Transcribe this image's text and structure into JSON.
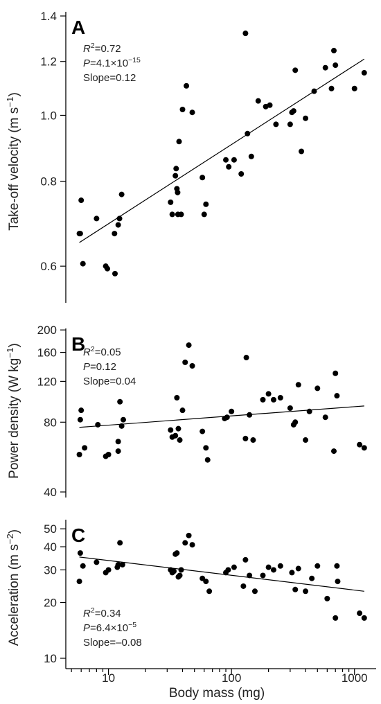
{
  "figure": {
    "xlabel": "Body mass (mg)"
  },
  "chart_data": [
    {
      "type": "scatter",
      "panel": "A",
      "ylabel": "Take-off velocity (m s⁻¹)",
      "xscale": "log",
      "yscale": "log",
      "xlim": [
        4.5,
        1500
      ],
      "ylim": [
        0.53,
        1.42
      ],
      "xticks": [
        "10",
        "100",
        "1000"
      ],
      "xtick_values": [
        10,
        100,
        1000
      ],
      "yticks": [
        "0.6",
        "0.8",
        "1.0",
        "1.2",
        "1.4"
      ],
      "ytick_values": [
        0.6,
        0.8,
        1.0,
        1.2,
        1.4
      ],
      "stats": [
        "R²=0.72",
        "P=4.1×10⁻¹⁵",
        "Slope=0.12"
      ],
      "fit": [
        [
          5.8,
          0.65
        ],
        [
          1200,
          1.21
        ]
      ],
      "points": [
        [
          5.8,
          0.67
        ],
        [
          5.9,
          0.67
        ],
        [
          6,
          0.75
        ],
        [
          6.2,
          0.605
        ],
        [
          8,
          0.705
        ],
        [
          9.5,
          0.6
        ],
        [
          9.8,
          0.595
        ],
        [
          11.2,
          0.67
        ],
        [
          11.3,
          0.585
        ],
        [
          12,
          0.69
        ],
        [
          12.3,
          0.705
        ],
        [
          12.8,
          0.765
        ],
        [
          32,
          0.745
        ],
        [
          33,
          0.715
        ],
        [
          35,
          0.815
        ],
        [
          35.5,
          0.835
        ],
        [
          36,
          0.78
        ],
        [
          36.5,
          0.77
        ],
        [
          36.7,
          0.715
        ],
        [
          37.5,
          0.915
        ],
        [
          39,
          0.715
        ],
        [
          40,
          1.02
        ],
        [
          43,
          1.105
        ],
        [
          48,
          1.01
        ],
        [
          58,
          0.81
        ],
        [
          60,
          0.715
        ],
        [
          62,
          0.74
        ],
        [
          90,
          0.86
        ],
        [
          95,
          0.84
        ],
        [
          105,
          0.86
        ],
        [
          120,
          0.82
        ],
        [
          130,
          1.32
        ],
        [
          135,
          0.94
        ],
        [
          145,
          0.87
        ],
        [
          165,
          1.05
        ],
        [
          190,
          1.03
        ],
        [
          205,
          1.035
        ],
        [
          230,
          0.97
        ],
        [
          300,
          0.97
        ],
        [
          310,
          1.01
        ],
        [
          320,
          1.015
        ],
        [
          330,
          1.165
        ],
        [
          370,
          0.885
        ],
        [
          400,
          0.99
        ],
        [
          470,
          1.085
        ],
        [
          580,
          1.175
        ],
        [
          650,
          1.095
        ],
        [
          680,
          1.245
        ],
        [
          700,
          1.185
        ],
        [
          1000,
          1.095
        ],
        [
          1200,
          1.155
        ]
      ]
    },
    {
      "type": "scatter",
      "panel": "B",
      "ylabel": "Power density (W kg⁻¹)",
      "xscale": "log",
      "yscale": "log",
      "xlim": [
        4.5,
        1500
      ],
      "ylim": [
        40,
        203
      ],
      "yticks": [
        "40",
        "80",
        "120",
        "160",
        "200"
      ],
      "ytick_values": [
        40,
        80,
        120,
        160,
        200
      ],
      "stats": [
        "R²=0.05",
        "P=0.12",
        "Slope=0.04"
      ],
      "fit": [
        [
          5.8,
          76
        ],
        [
          1200,
          94
        ]
      ],
      "points": [
        [
          5.8,
          58
        ],
        [
          5.9,
          82
        ],
        [
          6,
          90
        ],
        [
          6.4,
          62
        ],
        [
          8.2,
          78
        ],
        [
          9.5,
          57
        ],
        [
          10,
          58
        ],
        [
          12,
          60
        ],
        [
          12,
          66
        ],
        [
          12.4,
          98
        ],
        [
          12.8,
          77
        ],
        [
          13.2,
          82
        ],
        [
          32,
          74
        ],
        [
          33,
          69
        ],
        [
          35,
          70
        ],
        [
          36,
          102
        ],
        [
          37,
          75
        ],
        [
          38,
          67
        ],
        [
          40,
          90
        ],
        [
          42,
          145
        ],
        [
          45,
          172
        ],
        [
          48,
          140
        ],
        [
          58,
          73
        ],
        [
          62,
          62
        ],
        [
          64,
          55
        ],
        [
          88,
          83
        ],
        [
          92,
          84
        ],
        [
          100,
          89
        ],
        [
          130,
          68
        ],
        [
          132,
          152
        ],
        [
          140,
          86
        ],
        [
          150,
          67
        ],
        [
          180,
          100
        ],
        [
          200,
          106
        ],
        [
          220,
          100
        ],
        [
          250,
          102
        ],
        [
          300,
          92
        ],
        [
          320,
          78
        ],
        [
          330,
          80
        ],
        [
          350,
          116
        ],
        [
          400,
          67
        ],
        [
          430,
          89
        ],
        [
          500,
          112
        ],
        [
          580,
          84
        ],
        [
          680,
          60
        ],
        [
          700,
          130
        ],
        [
          720,
          104
        ],
        [
          1100,
          64
        ],
        [
          1200,
          62
        ]
      ]
    },
    {
      "type": "scatter",
      "panel": "C",
      "ylabel": "Acceleration (m s⁻²)",
      "xscale": "log",
      "yscale": "log",
      "xlim": [
        4.5,
        1500
      ],
      "ylim": [
        10,
        56
      ],
      "yticks": [
        "10",
        "20",
        "30",
        "40",
        "50"
      ],
      "ytick_values": [
        10,
        20,
        30,
        40,
        50
      ],
      "stats": [
        "R²=0.34",
        "P=6.4×10⁻⁵",
        "Slope=–0.08"
      ],
      "fit": [
        [
          5.8,
          35.2
        ],
        [
          1200,
          23
        ]
      ],
      "points": [
        [
          5.8,
          26
        ],
        [
          5.9,
          37
        ],
        [
          6.2,
          31.5
        ],
        [
          8,
          33
        ],
        [
          9.5,
          29
        ],
        [
          10,
          30
        ],
        [
          11.8,
          31
        ],
        [
          12,
          32
        ],
        [
          12.4,
          42
        ],
        [
          13,
          32
        ],
        [
          32,
          30
        ],
        [
          33,
          29
        ],
        [
          34,
          29.5
        ],
        [
          35,
          36.5
        ],
        [
          36,
          37
        ],
        [
          37,
          27.5
        ],
        [
          38,
          28
        ],
        [
          39,
          30
        ],
        [
          42,
          42
        ],
        [
          45,
          46
        ],
        [
          48,
          41
        ],
        [
          58,
          27
        ],
        [
          62,
          26
        ],
        [
          66,
          23
        ],
        [
          90,
          29
        ],
        [
          94,
          30
        ],
        [
          105,
          31
        ],
        [
          125,
          24.5
        ],
        [
          130,
          34
        ],
        [
          140,
          28
        ],
        [
          155,
          23
        ],
        [
          180,
          28
        ],
        [
          200,
          31
        ],
        [
          220,
          30
        ],
        [
          250,
          31.5
        ],
        [
          310,
          29
        ],
        [
          330,
          23.5
        ],
        [
          350,
          30.5
        ],
        [
          400,
          23
        ],
        [
          450,
          27
        ],
        [
          500,
          31.5
        ],
        [
          600,
          21
        ],
        [
          700,
          16.5
        ],
        [
          720,
          31.5
        ],
        [
          730,
          26
        ],
        [
          1100,
          17.5
        ],
        [
          1200,
          16.5
        ]
      ]
    }
  ]
}
